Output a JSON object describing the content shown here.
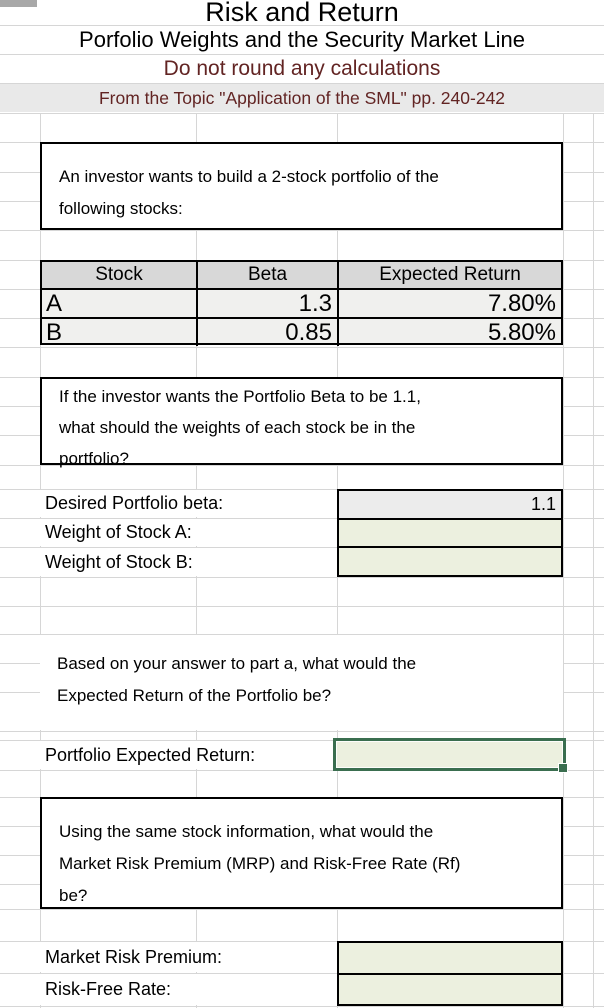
{
  "sheet": {
    "title": "Risk and Return",
    "subtitle": "Porfolio Weights and the Security Market Line",
    "note": "Do not round any calculations",
    "source_line": "From the Topic \"Application of the SML\" pp. 240-242"
  },
  "intro_box": {
    "line1": "An investor wants to build a 2-stock portfolio of the",
    "line2": "following stocks:"
  },
  "stock_table": {
    "headers": {
      "stock": "Stock",
      "beta": "Beta",
      "expected_return": "Expected Return"
    },
    "rows": [
      {
        "stock": "A",
        "beta": "1.3",
        "expected_return": "7.80%"
      },
      {
        "stock": "B",
        "beta": "0.85",
        "expected_return": "5.80%"
      }
    ]
  },
  "question_a": {
    "line1": "If the investor wants the Portfolio Beta to be 1.1,",
    "line2": "what should the weights of each stock be in the",
    "line3": "portfolio?"
  },
  "answers_a": {
    "desired_beta_label": "Desired Portfolio beta:",
    "desired_beta_value": "1.1",
    "weight_a_label": "Weight of Stock A:",
    "weight_a_value": "",
    "weight_b_label": "Weight of Stock B:",
    "weight_b_value": ""
  },
  "question_b": {
    "line1": "Based on your answer to part a, what would the",
    "line2": "Expected Return of the Portfolio be?"
  },
  "answer_b": {
    "label": "Portfolio Expected Return:",
    "value": ""
  },
  "question_c": {
    "line1": "Using the same stock information, what would the",
    "line2": "Market Risk Premium (MRP) and Risk-Free Rate (Rf)",
    "line3": "be?"
  },
  "answers_c": {
    "mrp_label": "Market Risk Premium:",
    "mrp_value": "",
    "rf_label": "Risk-Free Rate:",
    "rf_value": ""
  },
  "colors": {
    "accent_text": "#622423",
    "input_cell_fill": "#ecf0df",
    "given_value_fill": "#ececec",
    "table_header_fill": "#d8d8d8",
    "table_row_fill": "#f0f0ee",
    "selection_border": "#3a6e4f",
    "gridline": "#d6d6d6"
  }
}
